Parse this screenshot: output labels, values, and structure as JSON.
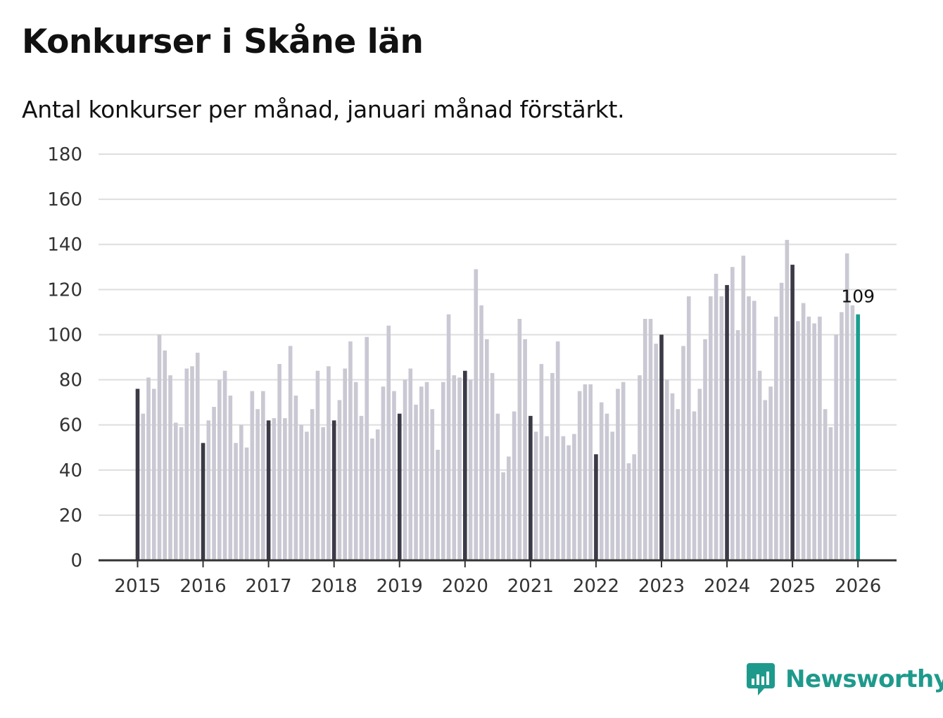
{
  "title": "Konkurser i Skåne län",
  "subtitle": "Antal konkurser per månad, januari månad förstärkt.",
  "brand": {
    "name": "Newsworthy",
    "icon": "newsworthy-chart-bubble-icon"
  },
  "colors": {
    "bar": "#c9c8d3",
    "highlight": "#3b3a47",
    "latest": "#1a9e8f",
    "grid": "#dedede",
    "axis": "#333333",
    "brand": "#1e9a8c"
  },
  "chart_data": {
    "type": "bar",
    "title": "Konkurser i Skåne län",
    "subtitle": "Antal konkurser per månad, januari månad förstärkt.",
    "xlabel": "",
    "ylabel": "",
    "ylim": [
      0,
      180
    ],
    "yticks": [
      0,
      20,
      40,
      60,
      80,
      100,
      120,
      140,
      160,
      180
    ],
    "xticks": [
      "2015",
      "2016",
      "2017",
      "2018",
      "2019",
      "2020",
      "2021",
      "2022",
      "2023",
      "2024",
      "2025",
      "2026"
    ],
    "start": "2015-01",
    "highlight": "january",
    "grid": true,
    "series": [
      {
        "year": "2015",
        "values": [
          76,
          65,
          81,
          76,
          100,
          93,
          82,
          61,
          59,
          85,
          86,
          92
        ]
      },
      {
        "year": "2016",
        "values": [
          52,
          62,
          68,
          80,
          84,
          73,
          52,
          60,
          50,
          75,
          67,
          75
        ]
      },
      {
        "year": "2017",
        "values": [
          62,
          63,
          87,
          63,
          95,
          73,
          60,
          57,
          67,
          84,
          59,
          86
        ]
      },
      {
        "year": "2018",
        "values": [
          62,
          71,
          85,
          97,
          79,
          64,
          99,
          54,
          58,
          77,
          104,
          75
        ]
      },
      {
        "year": "2019",
        "values": [
          65,
          80,
          85,
          69,
          77,
          79,
          67,
          49,
          79,
          109,
          82,
          81
        ]
      },
      {
        "year": "2020",
        "values": [
          84,
          80,
          129,
          113,
          98,
          83,
          65,
          39,
          46,
          66,
          107,
          98
        ]
      },
      {
        "year": "2021",
        "values": [
          64,
          57,
          87,
          55,
          83,
          97,
          55,
          51,
          56,
          75,
          78,
          78
        ]
      },
      {
        "year": "2022",
        "values": [
          47,
          70,
          65,
          57,
          76,
          79,
          43,
          47,
          82,
          107,
          107,
          96
        ]
      },
      {
        "year": "2023",
        "values": [
          100,
          80,
          74,
          67,
          95,
          117,
          66,
          76,
          98,
          117,
          127,
          117
        ]
      },
      {
        "year": "2024",
        "values": [
          122,
          130,
          102,
          135,
          117,
          115,
          84,
          71,
          77,
          108,
          123,
          142
        ]
      },
      {
        "year": "2025",
        "values": [
          131,
          106,
          114,
          108,
          105,
          108,
          67,
          59,
          100,
          110,
          136,
          113
        ]
      },
      {
        "year": "2026",
        "values": [
          109
        ]
      }
    ],
    "last_value_label": "109"
  }
}
